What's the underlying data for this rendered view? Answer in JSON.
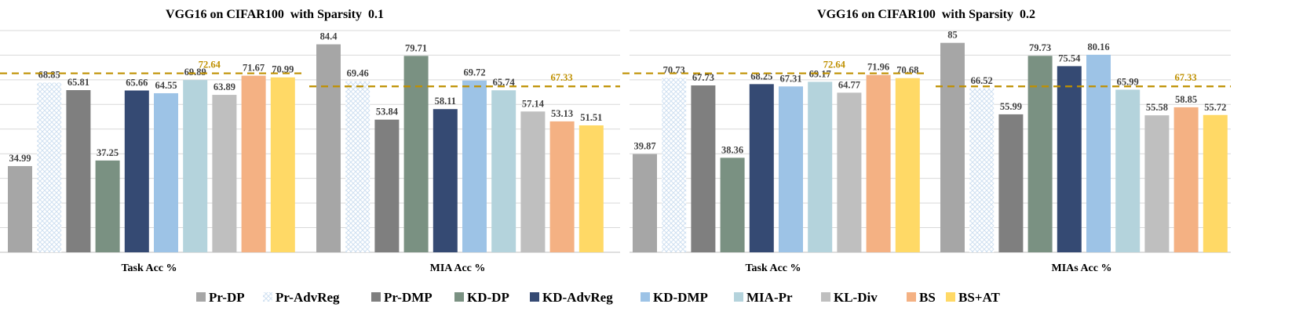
{
  "chart_data": [
    {
      "type": "bar",
      "title": "VGG16 on CIFAR100  with Sparsity  0.1",
      "categories": [
        "Task Acc %",
        "MIA Acc %"
      ],
      "series": [
        {
          "name": "Pr-DP",
          "values": [
            34.99,
            84.4
          ]
        },
        {
          "name": "Pr-AdvReg",
          "values": [
            68.85,
            69.46
          ]
        },
        {
          "name": "Pr-DMP",
          "values": [
            65.81,
            53.84
          ]
        },
        {
          "name": "KD-DP",
          "values": [
            37.25,
            79.71
          ]
        },
        {
          "name": "KD-AdvReg",
          "values": [
            65.66,
            58.11
          ]
        },
        {
          "name": "KD-DMP",
          "values": [
            64.55,
            69.72
          ]
        },
        {
          "name": "MIA-Pr",
          "values": [
            69.89,
            65.74
          ]
        },
        {
          "name": "KL-Div",
          "values": [
            63.89,
            57.14
          ]
        },
        {
          "name": "BS",
          "values": [
            71.67,
            53.13
          ]
        },
        {
          "name": "BS+AT",
          "values": [
            70.99,
            51.51
          ]
        }
      ],
      "value_labels": [
        [
          "34.99",
          "68.85",
          "65.81",
          "37.25",
          "65.66",
          "64.55",
          "69.89",
          "63.89",
          "71.67",
          "70.99"
        ],
        [
          "84.4",
          "69.46",
          "53.84",
          "79.71",
          "58.11",
          "69.72",
          "65.74",
          "57.14",
          "53.13",
          "51.51"
        ]
      ],
      "reference_lines": [
        {
          "category": "Task Acc %",
          "value": 72.64,
          "label": "72.64"
        },
        {
          "category": "MIA Acc %",
          "value": 67.33,
          "label": "67.33"
        }
      ],
      "ylim": [
        0,
        90
      ],
      "grid": true
    },
    {
      "type": "bar",
      "title": "VGG16 on CIFAR100  with Sparsity  0.2",
      "categories": [
        "Task Acc %",
        "MIAs Acc %"
      ],
      "series": [
        {
          "name": "Pr-DP",
          "values": [
            39.87,
            85
          ]
        },
        {
          "name": "Pr-AdvReg",
          "values": [
            70.73,
            66.52
          ]
        },
        {
          "name": "Pr-DMP",
          "values": [
            67.73,
            55.99
          ]
        },
        {
          "name": "KD-DP",
          "values": [
            38.36,
            79.73
          ]
        },
        {
          "name": "KD-AdvReg",
          "values": [
            68.25,
            75.54
          ]
        },
        {
          "name": "KD-DMP",
          "values": [
            67.31,
            80.16
          ]
        },
        {
          "name": "MIA-Pr",
          "values": [
            69.17,
            65.99
          ]
        },
        {
          "name": "KL-Div",
          "values": [
            64.77,
            55.58
          ]
        },
        {
          "name": "BS",
          "values": [
            71.96,
            58.85
          ]
        },
        {
          "name": "BS+AT",
          "values": [
            70.68,
            55.72
          ]
        }
      ],
      "value_labels": [
        [
          "39.87",
          "70.73",
          "67.73",
          "38.36",
          "68.25",
          "67.31",
          "69.17",
          "64.77",
          "71.96",
          "70.68"
        ],
        [
          "85",
          "66.52",
          "55.99",
          "79.73",
          "75.54",
          "80.16",
          "65.99",
          "55.58",
          "58.85",
          "55.72"
        ]
      ],
      "reference_lines": [
        {
          "category": "Task Acc %",
          "value": 72.64,
          "label": "72.64"
        },
        {
          "category": "MIAs Acc %",
          "value": 67.33,
          "label": "67.33"
        }
      ],
      "ylim": [
        0,
        90
      ],
      "grid": true
    }
  ],
  "legend": {
    "placement": "bottom",
    "items": [
      "Pr-DP",
      "Pr-AdvReg",
      "Pr-DMP",
      "KD-DP",
      "KD-AdvReg",
      "KD-DMP",
      "MIA-Pr",
      "KL-Div",
      "BS",
      "BS+AT"
    ]
  },
  "colors": {
    "Pr-DP": "#a6a6a6",
    "Pr-AdvReg": "pattern",
    "Pr-DMP": "#7f7f7f",
    "KD-DP": "#7a9182",
    "KD-AdvReg": "#354a73",
    "KD-DMP": "#9dc3e6",
    "MIA-Pr": "#b4d3dc",
    "KL-Div": "#bfbfbf",
    "BS": "#f4b183",
    "BS+AT": "#ffd966",
    "reference": "#bf9000",
    "grid": "#d9d9d9"
  }
}
